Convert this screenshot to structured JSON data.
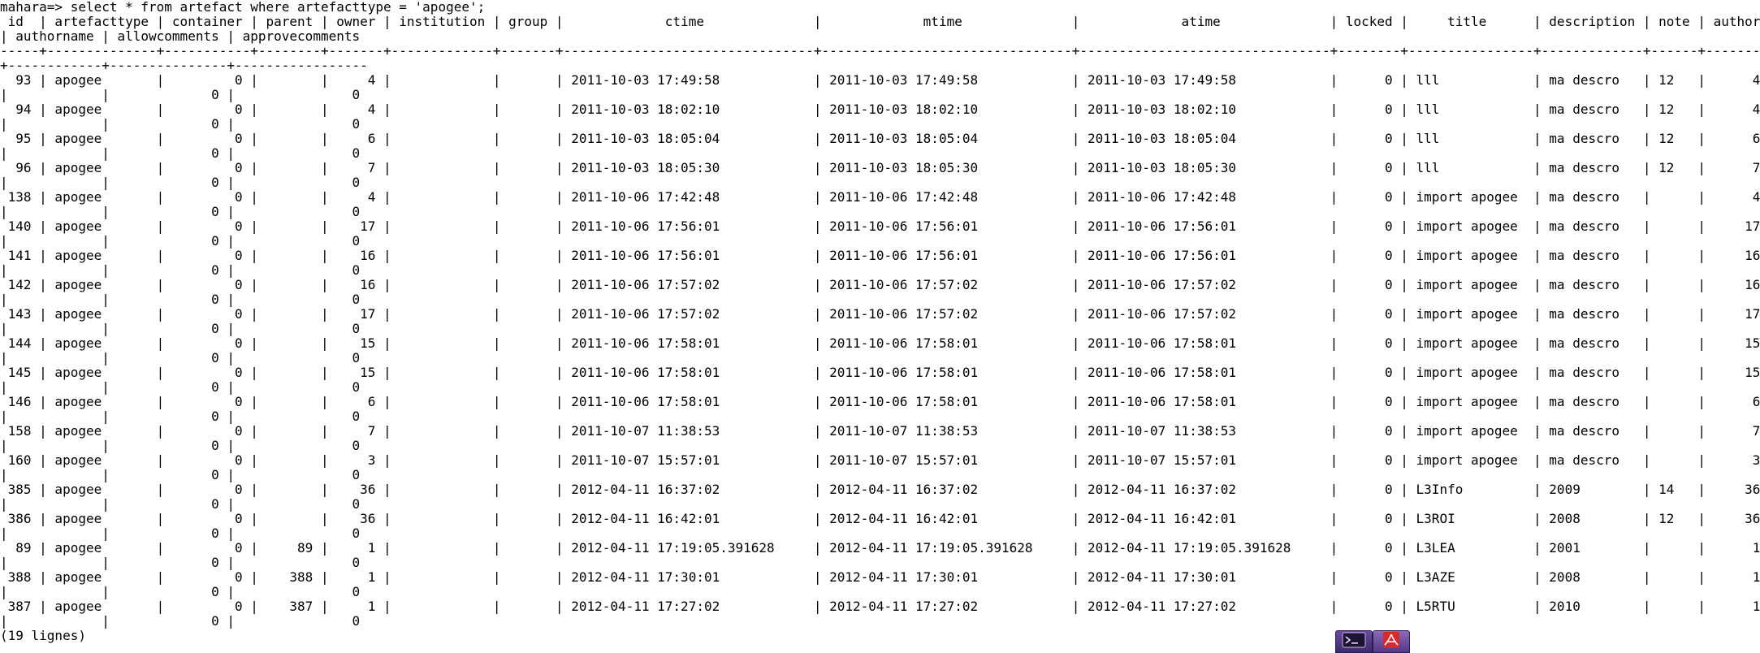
{
  "terminal": {
    "lines": [
      "mahara=> select * from artefact where artefacttype = 'apogee';",
      " id  | artefacttype | container | parent | owner | institution | group |             ctime              |             mtime              |             atime              | locked |     title      | description | note | author",
      "| authorname | allowcomments | approvecomments",
      "-----+--------------+-----------+--------+-------+-------------+-------+--------------------------------+--------------------------------+--------------------------------+--------+----------------+-------------+------+-------",
      "+------------+---------------+-----------------",
      "  93 | apogee       |         0 |        |     4 |             |       | 2011-10-03 17:49:58            | 2011-10-03 17:49:58            | 2011-10-03 17:49:58            |      0 | lll            | ma descro   | 12   |      4",
      "|            |             0 |               0",
      "  94 | apogee       |         0 |        |     4 |             |       | 2011-10-03 18:02:10            | 2011-10-03 18:02:10            | 2011-10-03 18:02:10            |      0 | lll            | ma descro   | 12   |      4",
      "|            |             0 |               0",
      "  95 | apogee       |         0 |        |     6 |             |       | 2011-10-03 18:05:04            | 2011-10-03 18:05:04            | 2011-10-03 18:05:04            |      0 | lll            | ma descro   | 12   |      6",
      "|            |             0 |               0",
      "  96 | apogee       |         0 |        |     7 |             |       | 2011-10-03 18:05:30            | 2011-10-03 18:05:30            | 2011-10-03 18:05:30            |      0 | lll            | ma descro   | 12   |      7",
      "|            |             0 |               0",
      " 138 | apogee       |         0 |        |     4 |             |       | 2011-10-06 17:42:48            | 2011-10-06 17:42:48            | 2011-10-06 17:42:48            |      0 | import apogee  | ma descro   |      |      4",
      "|            |             0 |               0",
      " 140 | apogee       |         0 |        |    17 |             |       | 2011-10-06 17:56:01            | 2011-10-06 17:56:01            | 2011-10-06 17:56:01            |      0 | import apogee  | ma descro   |      |     17",
      "|            |             0 |               0",
      " 141 | apogee       |         0 |        |    16 |             |       | 2011-10-06 17:56:01            | 2011-10-06 17:56:01            | 2011-10-06 17:56:01            |      0 | import apogee  | ma descro   |      |     16",
      "|            |             0 |               0",
      " 142 | apogee       |         0 |        |    16 |             |       | 2011-10-06 17:57:02            | 2011-10-06 17:57:02            | 2011-10-06 17:57:02            |      0 | import apogee  | ma descro   |      |     16",
      "|            |             0 |               0",
      " 143 | apogee       |         0 |        |    17 |             |       | 2011-10-06 17:57:02            | 2011-10-06 17:57:02            | 2011-10-06 17:57:02            |      0 | import apogee  | ma descro   |      |     17",
      "|            |             0 |               0",
      " 144 | apogee       |         0 |        |    15 |             |       | 2011-10-06 17:58:01            | 2011-10-06 17:58:01            | 2011-10-06 17:58:01            |      0 | import apogee  | ma descro   |      |     15",
      "|            |             0 |               0",
      " 145 | apogee       |         0 |        |    15 |             |       | 2011-10-06 17:58:01            | 2011-10-06 17:58:01            | 2011-10-06 17:58:01            |      0 | import apogee  | ma descro   |      |     15",
      "|            |             0 |               0",
      " 146 | apogee       |         0 |        |     6 |             |       | 2011-10-06 17:58:01            | 2011-10-06 17:58:01            | 2011-10-06 17:58:01            |      0 | import apogee  | ma descro   |      |      6",
      "|            |             0 |               0",
      " 158 | apogee       |         0 |        |     7 |             |       | 2011-10-07 11:38:53            | 2011-10-07 11:38:53            | 2011-10-07 11:38:53            |      0 | import apogee  | ma descro   |      |      7",
      "|            |             0 |               0",
      " 160 | apogee       |         0 |        |     3 |             |       | 2011-10-07 15:57:01            | 2011-10-07 15:57:01            | 2011-10-07 15:57:01            |      0 | import apogee  | ma descro   |      |      3",
      "|            |             0 |               0",
      " 385 | apogee       |         0 |        |    36 |             |       | 2012-04-11 16:37:02            | 2012-04-11 16:37:02            | 2012-04-11 16:37:02            |      0 | L3Info         | 2009        | 14   |     36",
      "|            |             0 |               0",
      " 386 | apogee       |         0 |        |    36 |             |       | 2012-04-11 16:42:01            | 2012-04-11 16:42:01            | 2012-04-11 16:42:01            |      0 | L3ROI          | 2008        | 12   |     36",
      "|            |             0 |               0",
      "  89 | apogee       |         0 |     89 |     1 |             |       | 2012-04-11 17:19:05.391628     | 2012-04-11 17:19:05.391628     | 2012-04-11 17:19:05.391628     |      0 | L3LEA          | 2001        |      |      1",
      "|            |             0 |               0",
      " 388 | apogee       |         0 |    388 |     1 |             |       | 2012-04-11 17:30:01            | 2012-04-11 17:30:01            | 2012-04-11 17:30:01            |      0 | L3AZE          | 2008        |      |      1",
      "|            |             0 |               0",
      " 387 | apogee       |         0 |    387 |     1 |             |       | 2012-04-11 17:27:02            | 2012-04-11 17:27:02            | 2012-04-11 17:27:02            |      0 | L5RTU          | 2010        |      |      1",
      "|            |             0 |               0",
      "(19 lignes)"
    ]
  },
  "taskbar": {
    "launchers": [
      {
        "icon": "terminal-icon"
      },
      {
        "icon": "pdf-reader-icon"
      }
    ]
  },
  "colors": {
    "background": "#ffffff",
    "text": "#000000",
    "pdf_accent": "#d62b2b"
  }
}
